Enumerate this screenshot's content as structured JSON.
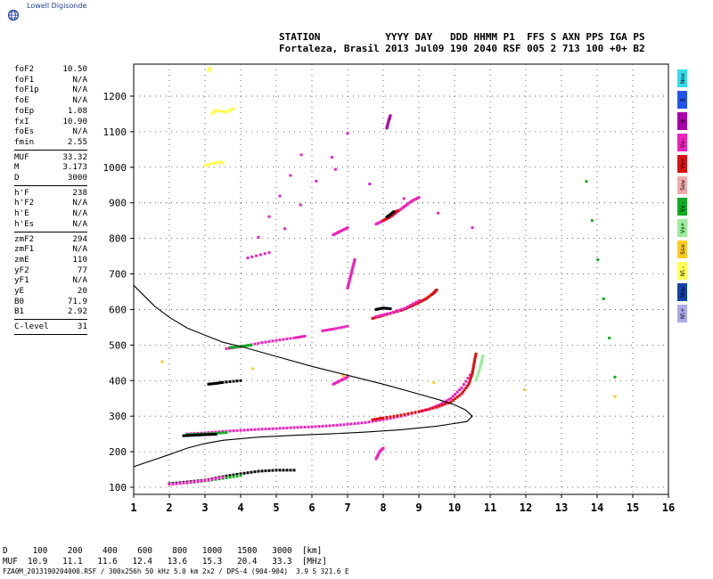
{
  "brand": {
    "name": "Lowell Digisonde",
    "logo_icon": "globe-icon",
    "color": "#1f3f9e"
  },
  "header": {
    "line1": "STATION           YYYY DAY   DDD HHMM P1  FFS S AXN PPS IGA PS",
    "line2": "Fortaleza, Brasil 2013 Jul09 190 2040 RSF 005 2 713 100 +0+ B2"
  },
  "parameters": [
    {
      "group": [
        {
          "name": "foF2",
          "value": "10.50"
        },
        {
          "name": "foF1",
          "value": "N/A"
        },
        {
          "name": "foF1p",
          "value": "N/A"
        },
        {
          "name": "foE",
          "value": "N/A"
        },
        {
          "name": "foEp",
          "value": "1.08"
        },
        {
          "name": "fxI",
          "value": "10.90"
        },
        {
          "name": "foEs",
          "value": "N/A"
        },
        {
          "name": "fmin",
          "value": "2.55"
        }
      ]
    },
    {
      "group": [
        {
          "name": "MUF",
          "value": "33.32"
        },
        {
          "name": "M",
          "value": "3.173"
        },
        {
          "name": "D",
          "value": "3000"
        }
      ]
    },
    {
      "group": [
        {
          "name": "h'F",
          "value": "238"
        },
        {
          "name": "h'F2",
          "value": "N/A"
        },
        {
          "name": "h'E",
          "value": "N/A"
        },
        {
          "name": "h'Es",
          "value": "N/A"
        }
      ]
    },
    {
      "group": [
        {
          "name": "zmF2",
          "value": "294"
        },
        {
          "name": "zmF1",
          "value": "N/A"
        },
        {
          "name": "zmE",
          "value": "110"
        },
        {
          "name": "yF2",
          "value": "77"
        },
        {
          "name": "yF1",
          "value": "N/A"
        },
        {
          "name": "yE",
          "value": "20"
        },
        {
          "name": "B0",
          "value": "71.9"
        },
        {
          "name": "B1",
          "value": "2.92"
        }
      ]
    },
    {
      "group": [
        {
          "name": "C-level",
          "value": "31"
        }
      ]
    }
  ],
  "legend": [
    {
      "label": "Nne",
      "color": "#33ddee"
    },
    {
      "label": "E",
      "color": "#2255ee"
    },
    {
      "label": "W",
      "color": "#aa00aa"
    },
    {
      "label": "Vo-",
      "color": "#ee22bb"
    },
    {
      "label": "Vo+",
      "color": "#dd1111"
    },
    {
      "label": "Sew",
      "color": "#f2aaaa"
    },
    {
      "label": "Vx-",
      "color": "#11aa22"
    },
    {
      "label": "Vx+",
      "color": "#99ee99"
    },
    {
      "label": "Sse",
      "color": "#ffcc22"
    },
    {
      "label": "Nl-",
      "color": "#ffff55"
    },
    {
      "label": "Nnw",
      "color": "#1144aa"
    },
    {
      "label": "Nl+",
      "color": "#aaaaee"
    }
  ],
  "mufTable": {
    "d_label": "D",
    "d_values": [
      "100",
      "200",
      "400",
      "600",
      "800",
      "1000",
      "1500",
      "3000"
    ],
    "d_unit": "[km]",
    "muf_label": "MUF",
    "muf_values": [
      "10.9",
      "11.1",
      "11.6",
      "12.4",
      "13.6",
      "15.3",
      "20.4",
      "33.3"
    ],
    "muf_unit": "[MHz]"
  },
  "footer": "FZA0M_2013190204000.RSF / 300x256h 50 kHz 5.0 km 2x2 / DPS-4 (904-904)  3.9 S 321.6 E",
  "chart_data": {
    "type": "scatter",
    "xlim": [
      1,
      16
    ],
    "ylim": [
      80,
      1290
    ],
    "xticks": [
      1,
      2,
      3,
      4,
      5,
      6,
      7,
      8,
      9,
      10,
      11,
      12,
      13,
      14,
      15,
      16
    ],
    "yticks": [
      100,
      200,
      300,
      400,
      500,
      600,
      700,
      800,
      900,
      1000,
      1100,
      1200
    ],
    "grid": true,
    "profile_curve": [
      [
        1.0,
        668
      ],
      [
        1.3,
        638
      ],
      [
        1.6,
        608
      ],
      [
        2.0,
        578
      ],
      [
        2.5,
        548
      ],
      [
        3.0,
        528
      ],
      [
        3.5,
        508
      ],
      [
        4.0,
        496
      ],
      [
        5.0,
        468
      ],
      [
        6.0,
        440
      ],
      [
        7.0,
        415
      ],
      [
        8.0,
        390
      ],
      [
        9.0,
        362
      ],
      [
        9.6,
        345
      ],
      [
        10.0,
        332
      ],
      [
        10.3,
        318
      ],
      [
        10.5,
        300
      ],
      [
        10.35,
        285
      ],
      [
        9.5,
        272
      ],
      [
        8.5,
        262
      ],
      [
        7.5,
        255
      ],
      [
        6.5,
        250
      ],
      [
        5.5,
        246
      ],
      [
        4.5,
        241
      ],
      [
        3.5,
        232
      ],
      [
        3.0,
        223
      ],
      [
        2.5,
        210
      ],
      [
        2.0,
        192
      ],
      [
        1.5,
        175
      ],
      [
        1.0,
        158
      ]
    ],
    "traces": [
      {
        "color": "#ee22bb",
        "points": [
          [
            2.5,
            250
          ],
          [
            3.0,
            253
          ],
          [
            3.5,
            257
          ],
          [
            4.0,
            260
          ],
          [
            4.5,
            263
          ],
          [
            5.0,
            265
          ],
          [
            5.5,
            268
          ],
          [
            6.0,
            270
          ],
          [
            6.5,
            273
          ],
          [
            7.0,
            277
          ],
          [
            7.5,
            282
          ],
          [
            8.0,
            290
          ],
          [
            8.5,
            300
          ],
          [
            9.0,
            312
          ],
          [
            9.3,
            320
          ],
          [
            9.6,
            333
          ],
          [
            9.9,
            350
          ],
          [
            10.2,
            380
          ],
          [
            10.5,
            425
          ]
        ]
      },
      {
        "color": "#11aa22",
        "points": [
          [
            2.5,
            248
          ],
          [
            2.8,
            249
          ],
          [
            3.2,
            251
          ],
          [
            3.6,
            254
          ]
        ]
      },
      {
        "color": "#000000",
        "points": [
          [
            2.4,
            245
          ],
          [
            2.6,
            246
          ],
          [
            2.8,
            247
          ],
          [
            3.0,
            248
          ],
          [
            3.3,
            249
          ]
        ]
      },
      {
        "color": "#dd1111",
        "points": [
          [
            7.7,
            290
          ],
          [
            8.0,
            295
          ],
          [
            8.5,
            303
          ],
          [
            9.0,
            313
          ],
          [
            9.5,
            325
          ],
          [
            9.9,
            340
          ],
          [
            10.2,
            363
          ],
          [
            10.4,
            390
          ],
          [
            10.5,
            420
          ],
          [
            10.55,
            450
          ],
          [
            10.6,
            475
          ]
        ]
      },
      {
        "color": "#99ee99",
        "points": [
          [
            10.6,
            400
          ],
          [
            10.7,
            430
          ],
          [
            10.75,
            450
          ],
          [
            10.8,
            470
          ]
        ]
      },
      {
        "color": "#dd1111",
        "points": [
          [
            7.7,
            575
          ],
          [
            8.0,
            583
          ],
          [
            8.5,
            597
          ],
          [
            8.8,
            610
          ],
          [
            9.0,
            620
          ],
          [
            9.2,
            630
          ],
          [
            9.4,
            645
          ],
          [
            9.5,
            655
          ]
        ]
      },
      {
        "color": "#ee22bb",
        "points": [
          [
            7.8,
            580
          ],
          [
            8.2,
            590
          ],
          [
            8.6,
            603
          ],
          [
            9.0,
            625
          ]
        ]
      },
      {
        "color": "#000000",
        "points": [
          [
            7.8,
            600
          ],
          [
            8.0,
            604
          ],
          [
            8.2,
            602
          ]
        ]
      },
      {
        "color": "#ee22bb",
        "points": [
          [
            3.6,
            490
          ],
          [
            4.0,
            495
          ],
          [
            4.5,
            505
          ],
          [
            5.0,
            513
          ],
          [
            5.5,
            520
          ],
          [
            5.8,
            525
          ]
        ]
      },
      {
        "color": "#11aa22",
        "points": [
          [
            3.7,
            493
          ],
          [
            4.0,
            496
          ],
          [
            4.3,
            500
          ]
        ]
      },
      {
        "color": "#ee22bb",
        "points": [
          [
            6.3,
            540
          ],
          [
            6.6,
            545
          ],
          [
            7.0,
            553
          ]
        ]
      },
      {
        "color": "#ee22bb",
        "points": [
          [
            7.8,
            840
          ],
          [
            8.0,
            850
          ],
          [
            8.2,
            860
          ],
          [
            8.4,
            875
          ],
          [
            8.6,
            890
          ],
          [
            8.8,
            905
          ],
          [
            9.0,
            915
          ]
        ]
      },
      {
        "color": "#dd1111",
        "points": [
          [
            8.0,
            850
          ],
          [
            8.2,
            862
          ],
          [
            8.4,
            878
          ]
        ]
      },
      {
        "color": "#000000",
        "points": [
          [
            8.1,
            860
          ],
          [
            8.3,
            875
          ]
        ]
      },
      {
        "color": "#ee22bb",
        "points": [
          [
            6.6,
            810
          ],
          [
            6.8,
            820
          ],
          [
            7.0,
            830
          ]
        ]
      },
      {
        "color": "#000000",
        "points": [
          [
            2.0,
            110
          ],
          [
            2.5,
            115
          ],
          [
            3.0,
            120
          ],
          [
            3.5,
            130
          ],
          [
            4.0,
            138
          ],
          [
            4.5,
            145
          ],
          [
            5.0,
            148
          ],
          [
            5.5,
            148
          ]
        ]
      },
      {
        "color": "#11aa22",
        "points": [
          [
            2.5,
            112
          ],
          [
            3.0,
            118
          ],
          [
            3.5,
            125
          ],
          [
            4.0,
            133
          ]
        ]
      },
      {
        "color": "#ee22bb",
        "points": [
          [
            2.0,
            108
          ],
          [
            2.5,
            113
          ],
          [
            3.0,
            119
          ],
          [
            3.5,
            128
          ]
        ]
      },
      {
        "color": "#ffff55",
        "points": [
          [
            3.0,
            1005
          ],
          [
            3.2,
            1010
          ],
          [
            3.4,
            1015
          ],
          [
            3.5,
            1012
          ]
        ]
      },
      {
        "color": "#ffff55",
        "points": [
          [
            3.2,
            1150
          ],
          [
            3.3,
            1160
          ],
          [
            3.6,
            1155
          ],
          [
            3.8,
            1165
          ]
        ]
      },
      {
        "color": "#ffff55",
        "points": [
          [
            3.1,
            1270
          ],
          [
            3.15,
            1280
          ]
        ]
      },
      {
        "color": "#ee22bb",
        "points": [
          [
            7.0,
            660
          ],
          [
            7.05,
            680
          ],
          [
            7.1,
            700
          ],
          [
            7.15,
            720
          ],
          [
            7.2,
            740
          ]
        ]
      },
      {
        "color": "#aa00aa",
        "points": [
          [
            8.1,
            1110
          ],
          [
            8.15,
            1130
          ],
          [
            8.2,
            1145
          ]
        ]
      },
      {
        "color": "#000000",
        "points": [
          [
            3.1,
            390
          ],
          [
            3.3,
            392
          ],
          [
            3.5,
            395
          ],
          [
            4.0,
            400
          ]
        ]
      },
      {
        "color": "#ee22bb",
        "points": [
          [
            6.6,
            390
          ],
          [
            6.8,
            400
          ],
          [
            7.0,
            410
          ]
        ]
      },
      {
        "color": "#ee22bb",
        "points": [
          [
            7.8,
            180
          ],
          [
            7.9,
            200
          ],
          [
            8.0,
            210
          ]
        ]
      },
      {
        "color": "#ffcc22",
        "points": [
          [
            1.8,
            453
          ],
          [
            14.5,
            355
          ]
        ]
      },
      {
        "color": "#11aa22",
        "points": [
          [
            13.7,
            960
          ],
          [
            14.5,
            410
          ]
        ]
      },
      {
        "color": "#ee22bb",
        "points": [
          [
            10.5,
            830
          ],
          [
            5.7,
            1035
          ],
          [
            4.2,
            745
          ],
          [
            4.8,
            760
          ],
          [
            7.0,
            1095
          ]
        ]
      }
    ]
  }
}
